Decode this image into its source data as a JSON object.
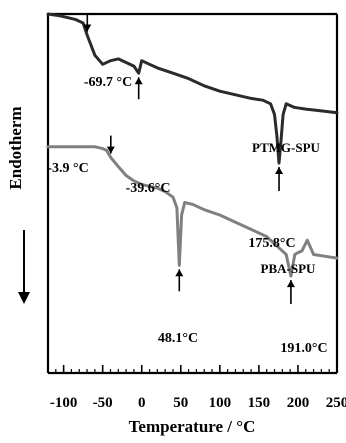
{
  "chart_data": {
    "type": "line",
    "xlabel": "Temperature / °C",
    "ylabel": "Endotherm",
    "xlim": [
      -120,
      250
    ],
    "x_ticks": [
      -100,
      -50,
      0,
      50,
      100,
      150,
      200,
      250
    ],
    "x_tick_labels": [
      "-100",
      "-50",
      "0",
      "50",
      "100",
      "150",
      "200",
      "250"
    ],
    "grid": false,
    "series": [
      {
        "name": "PTMG-SPU",
        "color": "#2b2b2b",
        "x": [
          -120,
          -105,
          -95,
          -85,
          -75,
          -69.7,
          -60,
          -50,
          -40,
          -30,
          -20,
          -10,
          -3.9,
          0,
          10,
          20,
          40,
          60,
          80,
          100,
          120,
          140,
          155,
          165,
          170,
          173,
          175.8,
          178,
          181,
          185,
          195,
          210,
          230,
          250
        ],
        "y": [
          1.0,
          0.995,
          0.99,
          0.985,
          0.975,
          0.94,
          0.885,
          0.86,
          0.87,
          0.875,
          0.865,
          0.855,
          0.835,
          0.87,
          0.86,
          0.85,
          0.835,
          0.82,
          0.8,
          0.785,
          0.775,
          0.765,
          0.76,
          0.75,
          0.72,
          0.66,
          0.585,
          0.64,
          0.72,
          0.75,
          0.74,
          0.735,
          0.73,
          0.725
        ]
      },
      {
        "name": "PBA-SPU",
        "color": "#808080",
        "x": [
          -120,
          -100,
          -80,
          -60,
          -50,
          -45,
          -39.6,
          -30,
          -20,
          -10,
          0,
          10,
          20,
          30,
          40,
          45,
          48.1,
          51,
          55,
          65,
          80,
          100,
          120,
          140,
          160,
          175,
          185,
          191.0,
          196,
          200,
          205,
          212,
          220,
          235,
          250
        ],
        "y": [
          0.63,
          0.63,
          0.63,
          0.63,
          0.625,
          0.62,
          0.6,
          0.575,
          0.55,
          0.535,
          0.525,
          0.52,
          0.515,
          0.505,
          0.49,
          0.46,
          0.3,
          0.44,
          0.475,
          0.47,
          0.455,
          0.44,
          0.42,
          0.4,
          0.38,
          0.35,
          0.33,
          0.27,
          0.33,
          0.335,
          0.34,
          0.37,
          0.33,
          0.325,
          0.32
        ]
      }
    ],
    "series_labels": [
      "PTMG-SPU",
      "PBA-SPU"
    ],
    "annotations": [
      "-69.7 °C",
      "-3.9 °C",
      "175.8°C",
      "-39.6°C",
      "48.1°C",
      "191.0°C"
    ],
    "annotation_x": [
      -69.7,
      -3.9,
      175.8,
      -39.6,
      48.1,
      191.0
    ],
    "annotation_series": [
      0,
      0,
      0,
      1,
      1,
      1
    ]
  }
}
